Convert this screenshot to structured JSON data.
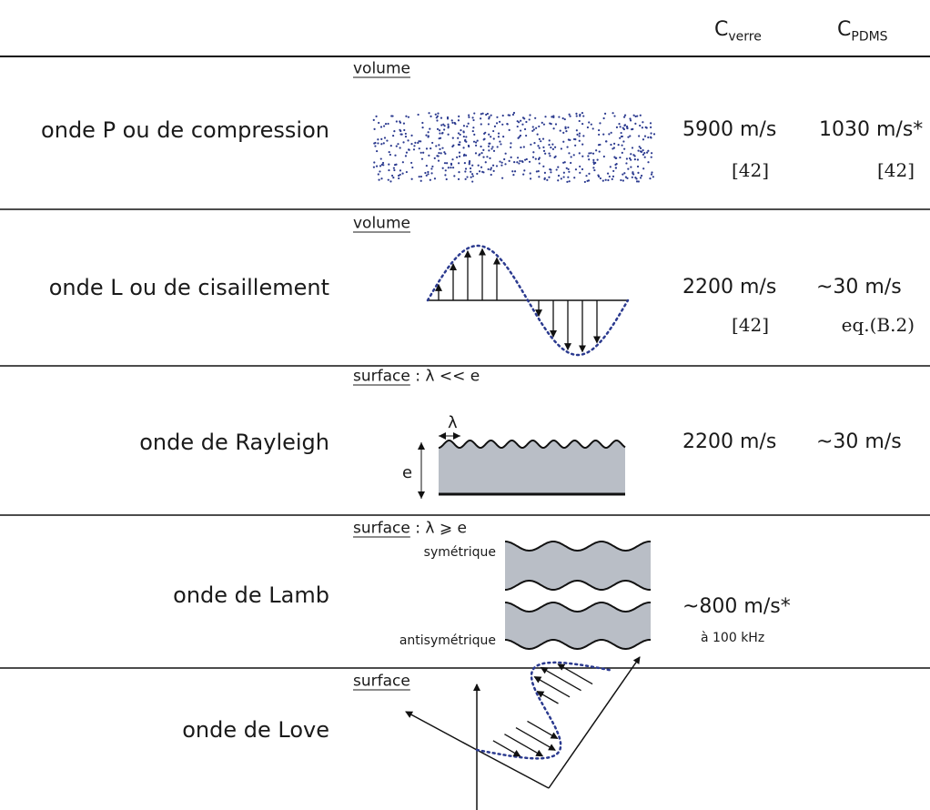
{
  "header": [
    {
      "main": "C",
      "sub": "verre"
    },
    {
      "main": "C",
      "sub": "PDMS"
    }
  ],
  "rows": [
    {
      "name": "onde P ou de compression",
      "kind": "volume",
      "verre": "5900 m/s",
      "verre_ref": "[42]",
      "pdms": "1030 m/s*",
      "pdms_ref": "[42]"
    },
    {
      "name": "onde L ou de cisaillement",
      "kind": "volume",
      "verre": "2200 m/s",
      "verre_ref": "[42]",
      "pdms": "~30 m/s",
      "pdms_ref": "eq.(B.2)"
    },
    {
      "name": "onde de Rayleigh",
      "kind": "surface",
      "condition": " : λ << e",
      "wavelength": "λ",
      "thickness": "e",
      "verre": "2200 m/s",
      "pdms": "~30 m/s"
    },
    {
      "name": "onde de Lamb",
      "kind": "surface",
      "condition": " : λ ⩾ e",
      "modes": [
        "symétrique",
        "antisymétrique"
      ],
      "verre": "~800 m/s*",
      "verre_note": "à 100 kHz"
    },
    {
      "name": "onde de Love",
      "kind": "surface"
    }
  ]
}
